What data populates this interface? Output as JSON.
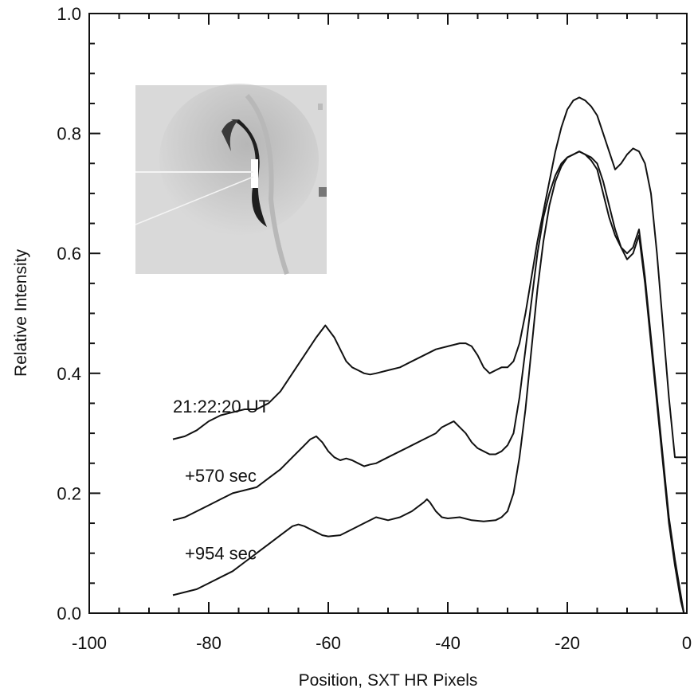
{
  "chart_data": {
    "type": "line",
    "xlabel": "Position, SXT HR Pixels",
    "ylabel": "Relative Intensity",
    "xlim": [
      -100,
      0
    ],
    "ylim": [
      0.0,
      1.0
    ],
    "x_ticks": [
      -100,
      -80,
      -60,
      -40,
      -20,
      0
    ],
    "y_ticks": [
      0.0,
      0.2,
      0.4,
      0.6,
      0.8,
      1.0
    ],
    "x_tick_labels": [
      "-100",
      "-80",
      "-60",
      "-40",
      "-20",
      "0"
    ],
    "y_tick_labels": [
      "0.0",
      "0.2",
      "0.4",
      "0.6",
      "0.8",
      "1.0"
    ],
    "grid": false,
    "inset": "grayscale soft X-ray image with cut lines",
    "annotations": [
      {
        "text": "21:22:20 UT",
        "x": -86,
        "y": 0.345
      },
      {
        "text": "+570 sec",
        "x": -84,
        "y": 0.23
      },
      {
        "text": "+954 sec",
        "x": -84,
        "y": 0.1
      }
    ],
    "series": [
      {
        "x": [
          -86,
          -84,
          -82,
          -80,
          -78,
          -76,
          -74,
          -72,
          -70,
          -68,
          -66,
          -64,
          -62,
          -60.5,
          -59,
          -58,
          -57,
          -56,
          -55,
          -54,
          -53,
          -52,
          -50,
          -48,
          -46,
          -44,
          -42,
          -40,
          -38,
          -37,
          -36,
          -35,
          -34,
          -33,
          -32,
          -31,
          -30,
          -29,
          -28,
          -27,
          -26,
          -25,
          -24,
          -23,
          -22,
          -21,
          -20,
          -19,
          -18,
          -17,
          -16,
          -15,
          -14,
          -13,
          -12,
          -11,
          -10,
          -9,
          -8,
          -7,
          -6,
          -5,
          -4,
          -3,
          -2,
          -1,
          0
        ],
        "y": [
          0.29,
          0.295,
          0.305,
          0.32,
          0.33,
          0.335,
          0.34,
          0.34,
          0.35,
          0.37,
          0.4,
          0.43,
          0.46,
          0.48,
          0.46,
          0.44,
          0.42,
          0.41,
          0.405,
          0.4,
          0.398,
          0.4,
          0.405,
          0.41,
          0.42,
          0.43,
          0.44,
          0.445,
          0.45,
          0.45,
          0.445,
          0.43,
          0.41,
          0.4,
          0.405,
          0.41,
          0.41,
          0.42,
          0.45,
          0.5,
          0.56,
          0.62,
          0.67,
          0.72,
          0.77,
          0.81,
          0.84,
          0.855,
          0.86,
          0.855,
          0.845,
          0.83,
          0.8,
          0.77,
          0.74,
          0.75,
          0.765,
          0.775,
          0.77,
          0.75,
          0.7,
          0.6,
          0.48,
          0.36,
          0.26,
          0.26,
          0.26
        ]
      },
      {
        "x": [
          -86,
          -84,
          -82,
          -80,
          -78,
          -76,
          -74,
          -72,
          -70,
          -68,
          -66,
          -64,
          -63,
          -62,
          -61,
          -60,
          -59,
          -58,
          -57,
          -56,
          -55,
          -54,
          -53,
          -52,
          -50,
          -48,
          -46,
          -44,
          -42,
          -41,
          -40,
          -39,
          -38,
          -37,
          -36,
          -35,
          -34,
          -33,
          -32,
          -31,
          -30,
          -29,
          -28,
          -27,
          -26,
          -25,
          -24,
          -23,
          -22,
          -21,
          -20,
          -19,
          -18,
          -17,
          -16,
          -15,
          -14,
          -13,
          -12,
          -11,
          -10,
          -9,
          -8,
          -7,
          -6,
          -5,
          -4,
          -3,
          -2,
          -1,
          -0.5
        ],
        "y": [
          0.155,
          0.16,
          0.17,
          0.18,
          0.19,
          0.2,
          0.205,
          0.21,
          0.225,
          0.24,
          0.26,
          0.28,
          0.29,
          0.295,
          0.285,
          0.27,
          0.26,
          0.255,
          0.258,
          0.255,
          0.25,
          0.245,
          0.248,
          0.25,
          0.26,
          0.27,
          0.28,
          0.29,
          0.3,
          0.31,
          0.315,
          0.32,
          0.31,
          0.3,
          0.285,
          0.275,
          0.27,
          0.265,
          0.265,
          0.27,
          0.28,
          0.3,
          0.36,
          0.44,
          0.52,
          0.6,
          0.66,
          0.7,
          0.73,
          0.75,
          0.76,
          0.765,
          0.77,
          0.765,
          0.76,
          0.75,
          0.72,
          0.68,
          0.64,
          0.61,
          0.59,
          0.6,
          0.63,
          0.55,
          0.45,
          0.35,
          0.25,
          0.15,
          0.08,
          0.02,
          0.0
        ]
      },
      {
        "x": [
          -86,
          -84,
          -82,
          -80,
          -78,
          -76,
          -74,
          -72,
          -70,
          -68,
          -66,
          -65,
          -64,
          -63,
          -62,
          -61,
          -60,
          -58,
          -56,
          -54,
          -52,
          -50,
          -48,
          -46,
          -44,
          -43.5,
          -43,
          -42,
          -41,
          -40,
          -38,
          -36,
          -34,
          -32,
          -31,
          -30,
          -29,
          -28,
          -27,
          -26,
          -25,
          -24,
          -23,
          -22,
          -21,
          -20,
          -19,
          -18,
          -17,
          -16,
          -15,
          -14,
          -13,
          -12,
          -11,
          -10,
          -9,
          -8,
          -7,
          -6,
          -5,
          -4,
          -3,
          -2,
          -1,
          -0.5
        ],
        "y": [
          0.03,
          0.035,
          0.04,
          0.05,
          0.06,
          0.07,
          0.085,
          0.1,
          0.115,
          0.13,
          0.145,
          0.148,
          0.145,
          0.14,
          0.135,
          0.13,
          0.128,
          0.13,
          0.14,
          0.15,
          0.16,
          0.155,
          0.16,
          0.17,
          0.185,
          0.19,
          0.185,
          0.17,
          0.16,
          0.158,
          0.16,
          0.155,
          0.153,
          0.155,
          0.16,
          0.17,
          0.2,
          0.26,
          0.34,
          0.44,
          0.54,
          0.62,
          0.68,
          0.72,
          0.745,
          0.76,
          0.765,
          0.77,
          0.765,
          0.755,
          0.74,
          0.7,
          0.66,
          0.63,
          0.61,
          0.6,
          0.61,
          0.64,
          0.56,
          0.46,
          0.36,
          0.26,
          0.16,
          0.09,
          0.03,
          0.0
        ]
      }
    ]
  }
}
